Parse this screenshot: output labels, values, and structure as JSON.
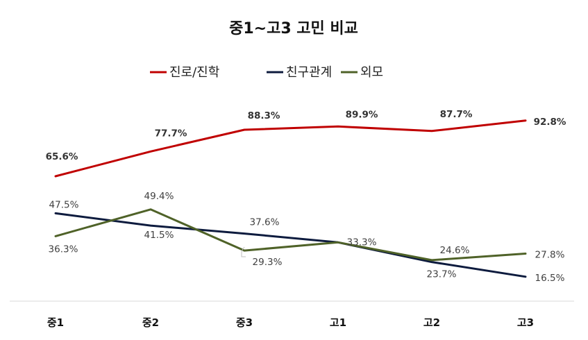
{
  "chart_data": {
    "type": "line",
    "title": "중1~고3 고민 비교",
    "categories": [
      "중1",
      "중2",
      "중3",
      "고1",
      "고2",
      "고3"
    ],
    "series": [
      {
        "name": "진로/진학",
        "color": "#c00000",
        "values": [
          65.6,
          77.7,
          88.3,
          89.9,
          87.7,
          92.8
        ],
        "labels": [
          "65.6%",
          "77.7%",
          "88.3%",
          "89.9%",
          "87.7%",
          "92.8%"
        ]
      },
      {
        "name": "친구관계",
        "color": "#0d1b3e",
        "values": [
          47.5,
          41.5,
          37.6,
          33.3,
          23.7,
          16.5
        ],
        "labels": [
          "47.5%",
          "41.5%",
          "37.6%",
          "33.3%",
          "23.7%",
          "16.5%"
        ]
      },
      {
        "name": "외모",
        "color": "#4f6228",
        "values": [
          36.3,
          49.4,
          29.3,
          33.3,
          24.6,
          27.8
        ],
        "labels": [
          "36.3%",
          "49.4%",
          "29.3%",
          "33.3%",
          "24.6%",
          "27.8%"
        ]
      }
    ],
    "legend_position": "top",
    "grid": false,
    "ylim": [
      10,
      100
    ]
  }
}
